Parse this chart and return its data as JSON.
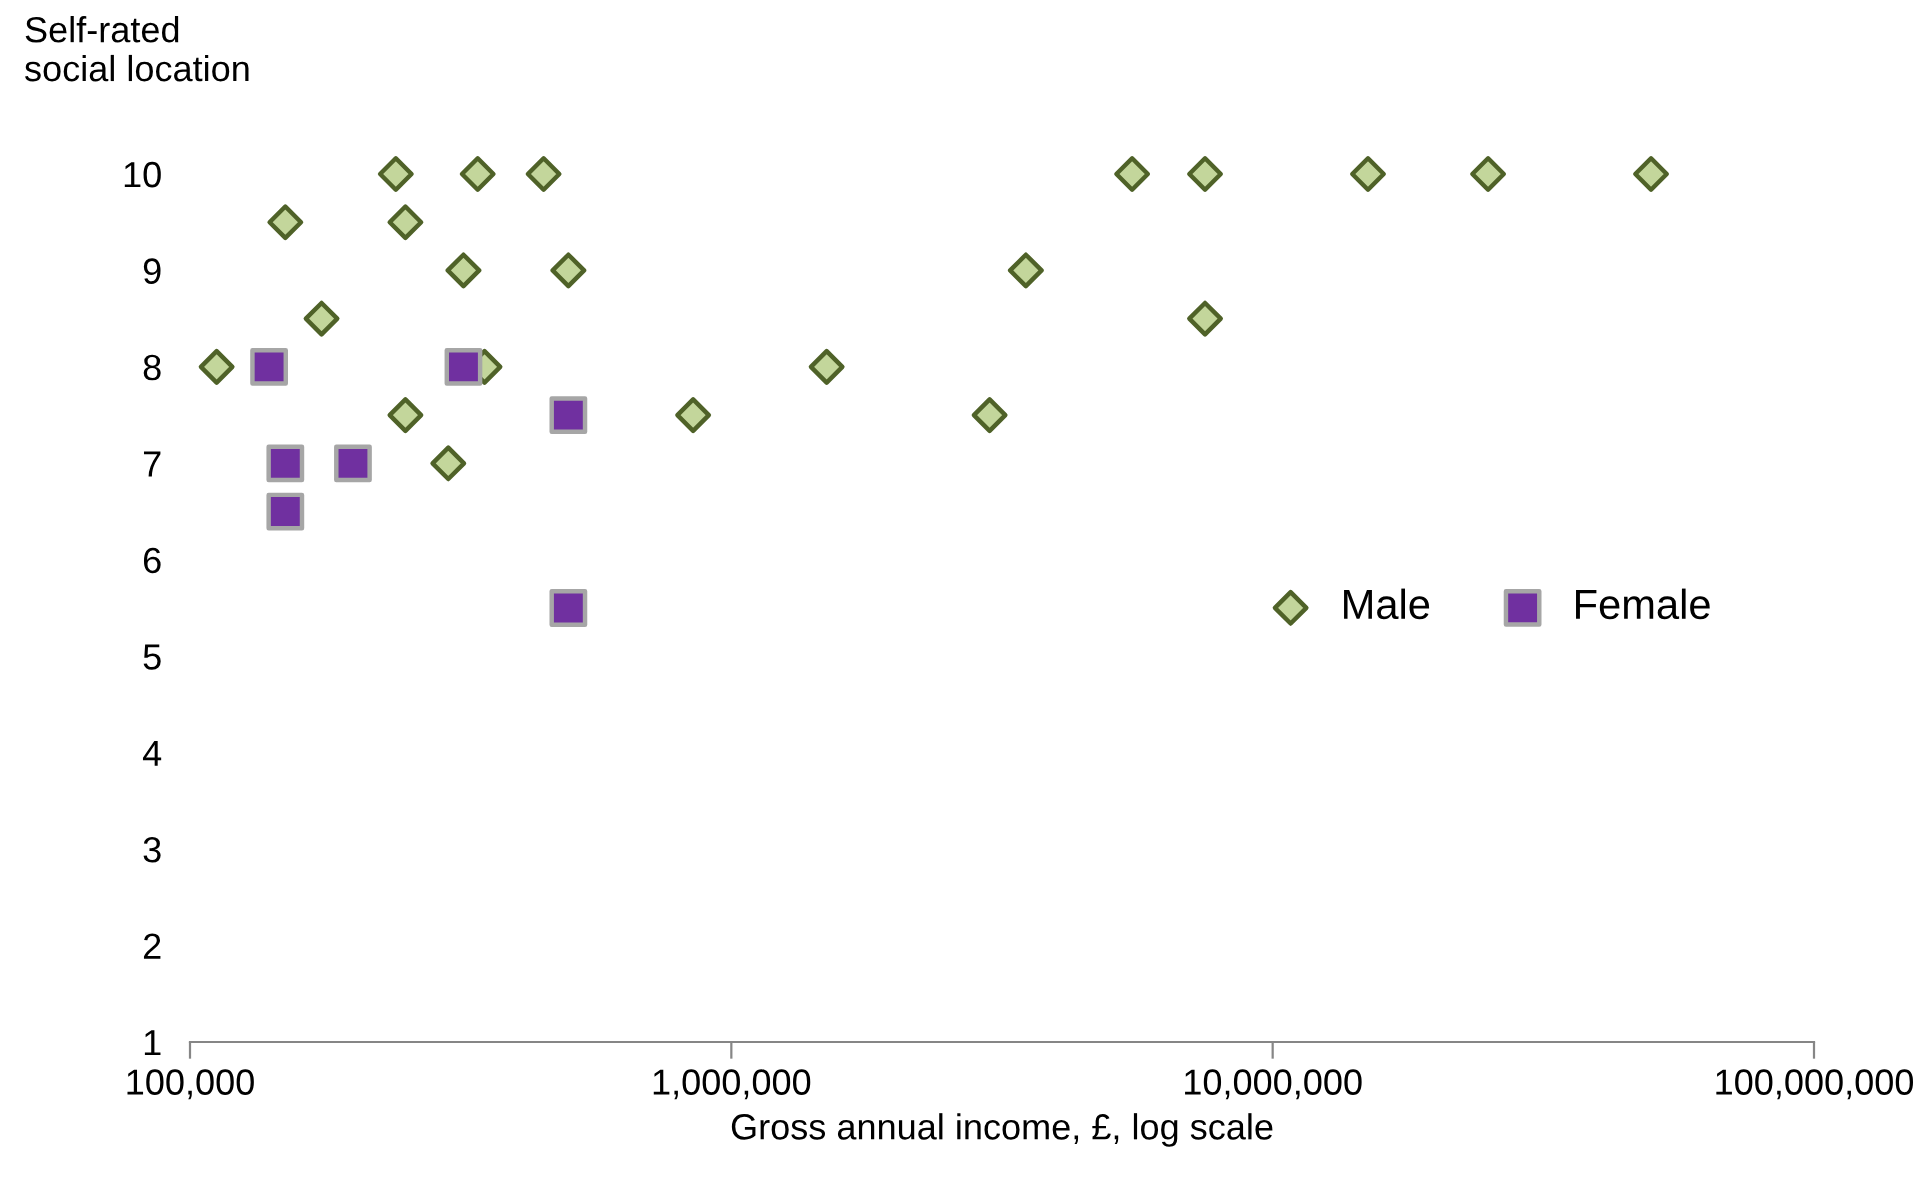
{
  "chart_data": {
    "type": "scatter",
    "xlabel": "Gross annual income, £, log scale",
    "ylabel": "Self-rated\nsocial location",
    "log": "x",
    "xlim": [
      100000,
      100000000
    ],
    "xticks": [
      {
        "value": 100000,
        "label": "100,000"
      },
      {
        "value": 1000000,
        "label": "1,000,000"
      },
      {
        "value": 10000000,
        "label": "10,000,000"
      },
      {
        "value": 100000000,
        "label": "100,000,000"
      }
    ],
    "ylim": [
      1,
      10
    ],
    "yticks": [
      1,
      2,
      3,
      4,
      5,
      6,
      7,
      8,
      9,
      10
    ],
    "grid": false,
    "legend": "right",
    "series": [
      {
        "name": "Male",
        "color": "#c3d69b",
        "marker": "diamond",
        "x": [
          112000,
          150000,
          175000,
          240000,
          250000,
          250000,
          300000,
          320000,
          340000,
          350000,
          450000,
          500000,
          850000,
          1500000,
          3000000,
          3500000,
          5500000,
          7500000,
          7500000,
          15000000,
          25000000,
          50000000
        ],
        "values": [
          8,
          9.5,
          8.5,
          10,
          9.5,
          7.5,
          7,
          9,
          10,
          8,
          10,
          9,
          7.5,
          8,
          7.5,
          9,
          10,
          10,
          8.5,
          10,
          10,
          10
        ]
      },
      {
        "name": "Female",
        "color": "#7030a0",
        "marker": "square",
        "x": [
          140000,
          150000,
          150000,
          200000,
          320000,
          500000,
          500000
        ],
        "values": [
          8,
          7,
          6.5,
          7,
          8,
          7.5,
          5.5
        ]
      }
    ]
  }
}
